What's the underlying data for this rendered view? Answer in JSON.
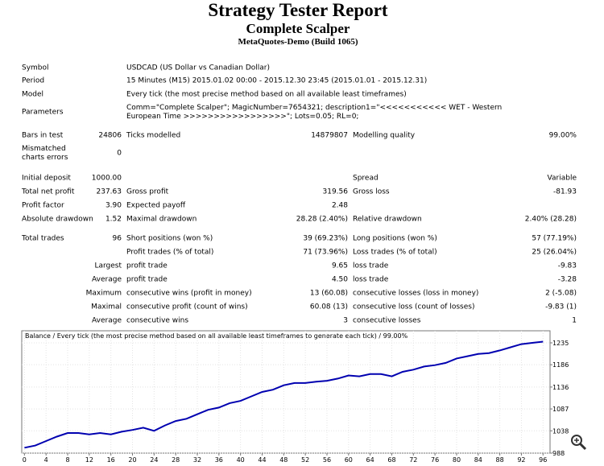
{
  "header": {
    "title": "Strategy Tester Report",
    "subtitle": "Complete Scalper",
    "build": "MetaQuotes-Demo (Build 1065)"
  },
  "table": {
    "rows": [
      [
        "Symbol",
        null,
        "USDCAD (US Dollar vs Canadian Dollar)",
        null,
        null,
        null
      ],
      [
        "Period",
        null,
        "15 Minutes (M15) 2015.01.02 00:00 - 2015.12.30 23:45 (2015.01.01 - 2015.12.31)",
        null,
        null,
        null
      ],
      [
        "Model",
        null,
        "Every tick (the most precise method based on all available least timeframes)",
        null,
        null,
        null
      ],
      [
        "Parameters",
        null,
        "Comm=\"Complete Scalper\"; MagicNumber=7654321; description1=\"<<<<<<<<<<< WET - Western European Time >>>>>>>>>>>>>>>>>\"; Lots=0.05; RL=0;",
        null,
        null,
        null
      ],
      [
        "Bars in test",
        "24806",
        "Ticks modelled",
        "14879807",
        "Modelling quality",
        "99.00%"
      ],
      [
        "Mismatched charts errors",
        "0",
        null,
        null,
        null,
        null
      ],
      [
        "Initial deposit",
        "1000.00",
        null,
        null,
        "Spread",
        "Variable"
      ],
      [
        "Total net profit",
        "237.63",
        "Gross profit",
        "319.56",
        "Gross loss",
        "-81.93"
      ],
      [
        "Profit factor",
        "3.90",
        "Expected payoff",
        "2.48",
        null,
        null
      ],
      [
        "Absolute drawdown",
        "1.52",
        "Maximal drawdown",
        "28.28 (2.40%)",
        "Relative drawdown",
        "2.40% (28.28)"
      ],
      [
        "Total trades",
        "96",
        "Short positions (won %)",
        "39 (69.23%)",
        "Long positions (won %)",
        "57 (77.19%)"
      ],
      [
        null,
        null,
        "Profit trades (% of total)",
        "71 (73.96%)",
        "Loss trades (% of total)",
        "25 (26.04%)"
      ]
    ],
    "trade_stats": [
      [
        "Largest",
        null,
        "profit trade",
        "9.65",
        "loss trade",
        "-9.83"
      ],
      [
        "Average",
        null,
        "profit trade",
        "4.50",
        "loss trade",
        "-3.28"
      ],
      [
        "Maximum",
        null,
        "consecutive wins (profit in money)",
        "13 (60.08)",
        "consecutive losses (loss in money)",
        "2 (-5.08)"
      ],
      [
        "Maximal",
        null,
        "consecutive profit (count of wins)",
        "60.08 (13)",
        "consecutive loss (count of losses)",
        "-9.83 (1)"
      ],
      [
        "Average",
        null,
        "consecutive wins",
        "3",
        "consecutive losses",
        "1"
      ]
    ]
  },
  "chart_data": {
    "type": "line",
    "title": "Balance / Every tick (the most precise method based on all available least timeframes to generate each tick) / 99.00%",
    "x": [
      0,
      2,
      4,
      6,
      8,
      10,
      12,
      14,
      16,
      18,
      20,
      22,
      24,
      26,
      28,
      30,
      32,
      34,
      36,
      38,
      40,
      42,
      44,
      46,
      48,
      50,
      52,
      54,
      56,
      58,
      60,
      62,
      64,
      66,
      68,
      70,
      72,
      74,
      76,
      78,
      80,
      82,
      84,
      86,
      88,
      90,
      92,
      94,
      96
    ],
    "values": [
      1000,
      1005,
      1015,
      1025,
      1033,
      1033,
      1030,
      1033,
      1030,
      1036,
      1040,
      1045,
      1038,
      1050,
      1060,
      1065,
      1075,
      1085,
      1090,
      1100,
      1105,
      1115,
      1125,
      1130,
      1140,
      1145,
      1145,
      1148,
      1150,
      1155,
      1162,
      1160,
      1165,
      1165,
      1160,
      1170,
      1175,
      1182,
      1185,
      1190,
      1200,
      1205,
      1210,
      1212,
      1218,
      1225,
      1232,
      1235,
      1237.63
    ],
    "color": "#0000b0",
    "xlim": [
      -0.5,
      97.3
    ],
    "ylim": [
      988,
      1262
    ],
    "xticks": [
      0,
      4,
      8,
      12,
      16,
      20,
      24,
      28,
      32,
      36,
      40,
      44,
      48,
      52,
      56,
      60,
      64,
      68,
      72,
      76,
      80,
      84,
      88,
      92,
      96
    ],
    "yticks": [
      988,
      1038,
      1087,
      1136,
      1186,
      1235
    ],
    "grid": true
  }
}
